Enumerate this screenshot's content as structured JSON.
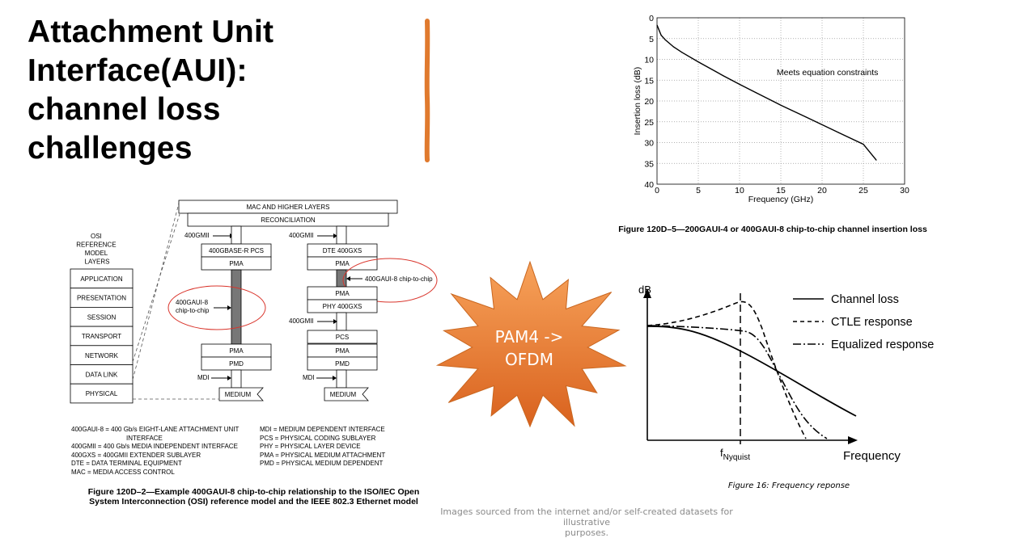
{
  "slide": {
    "title_lines": [
      "Attachment Unit",
      "Interface(AUI):",
      "channel loss",
      "challenges"
    ],
    "credit_lines": [
      "Images sourced from the internet and/or self-created datasets for illustrative",
      "purposes."
    ],
    "burst_lines": [
      "PAM4 ->",
      "OFDM"
    ],
    "accent_colors": {
      "orange_bar": "#e07a2e",
      "burst_top": "#f7a25a",
      "burst_bottom": "#d9621e",
      "highlight_ellipse": "#d9342b"
    }
  },
  "osi_figure": {
    "osi_header": [
      "OSI",
      "REFERENCE",
      "MODEL",
      "LAYERS"
    ],
    "osi_layers": [
      "APPLICATION",
      "PRESENTATION",
      "SESSION",
      "TRANSPORT",
      "NETWORK",
      "DATA LINK",
      "PHYSICAL"
    ],
    "top_layers": [
      "MAC AND HIGHER LAYERS",
      "RECONCILIATION"
    ],
    "left_stack": {
      "gmii": "400GMII",
      "pcs": "400GBASE-R PCS",
      "pma": "PMA",
      "aui_label": [
        "400GAUI-8",
        "chip-to-chip"
      ],
      "pma2": "PMA",
      "pmd": "PMD",
      "mdi": "MDI",
      "medium": "MEDIUM"
    },
    "right_stack": {
      "gmii": "400GMII",
      "dte": "DTE 400GXS",
      "pma": "PMA",
      "aui_label": "400GAUI-8 chip-to-chip",
      "pma_b": "PMA",
      "phy": "PHY 400GXS",
      "gmii2": "400GMII",
      "pcs": "PCS",
      "pma2": "PMA",
      "pmd": "PMD",
      "mdi": "MDI",
      "medium": "MEDIUM"
    },
    "abbrev_left": [
      "400GAUI-8 = 400 Gb/s EIGHT-LANE ATTACHMENT UNIT",
      "INTERFACE",
      "400GMII = 400 Gb/s MEDIA INDEPENDENT INTERFACE",
      "400GXS = 400GMII EXTENDER SUBLAYER",
      "DTE = DATA TERMINAL EQUIPMENT",
      "MAC = MEDIA ACCESS CONTROL"
    ],
    "abbrev_right": [
      "MDI = MEDIUM DEPENDENT INTERFACE",
      "PCS = PHYSICAL CODING SUBLAYER",
      "PHY = PHYSICAL LAYER DEVICE",
      "PMA = PHYSICAL MEDIUM ATTACHMENT",
      "PMD = PHYSICAL MEDIUM DEPENDENT"
    ],
    "caption_lines": [
      "Figure 120D–2—Example 400GAUI-8 chip-to-chip relationship to the ISO/IEC Open",
      "System Interconnection (OSI) reference model and the IEEE 802.3 Ethernet model"
    ]
  },
  "chart_data": [
    {
      "type": "line",
      "title": "",
      "xlabel": "Frequency (GHz)",
      "ylabel": "Insertion loss (dB)",
      "xlim": [
        0,
        30
      ],
      "ylim": [
        0,
        40
      ],
      "y_inverted": true,
      "x_ticks": [
        0,
        5,
        10,
        15,
        20,
        25,
        30
      ],
      "y_ticks": [
        0,
        5,
        10,
        15,
        20,
        25,
        30,
        35,
        40
      ],
      "grid": true,
      "annotation": "Meets equation constraints",
      "series": [
        {
          "x": [
            0.01,
            0.5,
            1,
            2,
            3,
            5,
            8,
            10,
            12,
            15,
            18,
            20,
            22,
            25,
            26.56
          ],
          "y": [
            1.8,
            4.2,
            5.3,
            7.0,
            8.3,
            10.6,
            13.9,
            16.0,
            18.0,
            21.0,
            23.8,
            25.7,
            27.6,
            30.4,
            34.2
          ]
        }
      ],
      "caption": "Figure 120D–5—200GAUI-4 or 400GAUI-8 chip-to-chip channel insertion loss"
    },
    {
      "type": "line",
      "title": "",
      "ylabel": "dB",
      "xlabel": "Frequency",
      "nyquist_label": "f",
      "nyquist_sub": "Nyquist",
      "legend": [
        "Channel loss",
        "CTLE response",
        "Equalized response"
      ],
      "caption": "Figure 16: Frequency reponse"
    }
  ]
}
